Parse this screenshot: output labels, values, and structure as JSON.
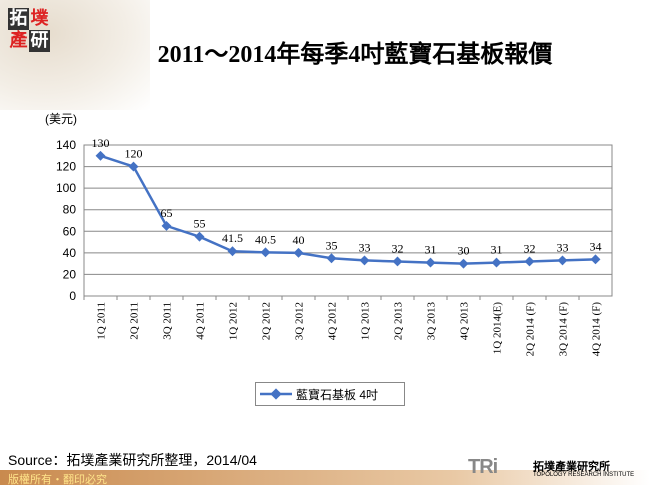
{
  "logo": {
    "chars": [
      "拓",
      "墣",
      "產",
      "研"
    ]
  },
  "title": "2011～2014年每季4吋藍寶石基板報價",
  "chart_data": {
    "type": "line",
    "title": "2011～2014年每季4吋藍寶石基板報價",
    "ylabel": "(美元)",
    "xlabel": "",
    "ylim": [
      0,
      140
    ],
    "yticks": [
      0,
      20,
      40,
      60,
      80,
      100,
      120,
      140
    ],
    "grid": true,
    "legend_position": "bottom",
    "categories": [
      "1Q 2011",
      "2Q 2011",
      "3Q 2011",
      "4Q 2011",
      "1Q 2012",
      "2Q 2012",
      "3Q 2012",
      "4Q 2012",
      "1Q 2013",
      "2Q 2013",
      "3Q 2013",
      "4Q 2013",
      "1Q 2014(E)",
      "2Q 2014 (F)",
      "3Q 2014 (F)",
      "4Q 2014 (F)"
    ],
    "series": [
      {
        "name": "藍寶石基板 4吋",
        "color": "#4472c4",
        "values": [
          130,
          120,
          65,
          55,
          41.5,
          40.5,
          40,
          35,
          33,
          32,
          31,
          30,
          31,
          32,
          33,
          34
        ],
        "labels": [
          "130",
          "120",
          "65",
          "55",
          "41.5",
          "40.5",
          "40",
          "35",
          "33",
          "32",
          "31",
          "30",
          "31",
          "32",
          "33",
          "34"
        ]
      }
    ]
  },
  "source": "Source：拓墣產業研究所整理，2014/04",
  "copyright": "版權所有‧翻印必究",
  "brand": {
    "mark": "TRi",
    "name": "拓墣產業研究所",
    "english": "TOPOLOGY RESEARCH INSTITUTE"
  }
}
